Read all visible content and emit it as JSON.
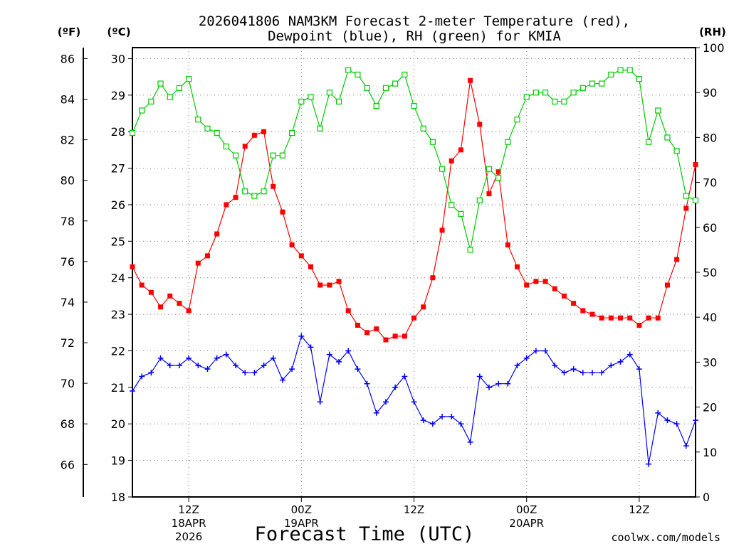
{
  "colors": {
    "temperature": "#ff0000",
    "dewpoint": "#0000ff",
    "rh": "#00cc00",
    "grid": "#777777",
    "credit": "#ff0000"
  },
  "chart_data": {
    "type": "line",
    "title_line1": "2026041806 NAM3KM Forecast 2-meter Temperature (red),",
    "title_line2": "Dewpoint (blue), RH (green) for KMIA",
    "xlabel": "Forecast Time (UTC)",
    "credit": "coolwx.com/models",
    "unit_labels": {
      "fahrenheit": "(ºF)",
      "celsius": "(ºC)",
      "rh": "(RH)"
    },
    "grid": true,
    "x_unit": "hour",
    "x_start": "2026-04-18 06Z",
    "x_step_hours": 1,
    "xlim": [
      0,
      60
    ],
    "x_ticks": [
      {
        "x": 6,
        "line1": "12Z",
        "line2": "18APR",
        "line3": "2026"
      },
      {
        "x": 18,
        "line1": "00Z",
        "line2": "19APR",
        "line3": ""
      },
      {
        "x": 30,
        "line1": "12Z",
        "line2": "",
        "line3": ""
      },
      {
        "x": 42,
        "line1": "00Z",
        "line2": "20APR",
        "line3": ""
      },
      {
        "x": 54,
        "line1": "12Z",
        "line2": "",
        "line3": ""
      }
    ],
    "y_left_celsius": {
      "lim": [
        18,
        30.3
      ],
      "ticks": [
        "18",
        "19",
        "20",
        "21",
        "22",
        "23",
        "24",
        "25",
        "26",
        "27",
        "28",
        "29",
        "30"
      ]
    },
    "y_left_fahrenheit": {
      "lim": [
        64.4,
        86.54
      ],
      "ticks": [
        "66",
        "68",
        "70",
        "72",
        "74",
        "76",
        "78",
        "80",
        "82",
        "84",
        "86"
      ]
    },
    "y_right_rh": {
      "lim": [
        0,
        100
      ],
      "ticks": [
        "0",
        "10",
        "20",
        "30",
        "40",
        "50",
        "60",
        "70",
        "80",
        "90",
        "100"
      ]
    },
    "series": [
      {
        "name": "Temperature",
        "axis": "celsius",
        "marker": "filled-square",
        "values": [
          24.3,
          23.8,
          23.6,
          23.2,
          23.5,
          23.3,
          23.1,
          24.4,
          24.6,
          25.2,
          26.0,
          26.2,
          27.6,
          27.9,
          28.0,
          26.5,
          25.8,
          24.9,
          24.6,
          24.3,
          23.8,
          23.8,
          23.9,
          23.1,
          22.7,
          22.5,
          22.6,
          22.3,
          22.4,
          22.4,
          22.9,
          23.2,
          24.0,
          25.3,
          27.2,
          27.5,
          29.4,
          28.2,
          26.3,
          26.9,
          24.9,
          24.3,
          23.8,
          23.9,
          23.9,
          23.7,
          23.5,
          23.3,
          23.1,
          23.0,
          22.9,
          22.9,
          22.9,
          22.9,
          22.7,
          22.9,
          22.9,
          23.8,
          24.5,
          25.9,
          27.1
        ]
      },
      {
        "name": "Dewpoint",
        "axis": "celsius",
        "marker": "plus",
        "values": [
          20.9,
          21.3,
          21.4,
          21.8,
          21.6,
          21.6,
          21.8,
          21.6,
          21.5,
          21.8,
          21.9,
          21.6,
          21.4,
          21.4,
          21.6,
          21.8,
          21.2,
          21.5,
          22.4,
          22.1,
          20.6,
          21.9,
          21.7,
          22.0,
          21.5,
          21.1,
          20.3,
          20.6,
          21.0,
          21.3,
          20.6,
          20.1,
          20.0,
          20.2,
          20.2,
          20.0,
          19.5,
          21.3,
          21.0,
          21.1,
          21.1,
          21.6,
          21.8,
          22.0,
          22.0,
          21.6,
          21.4,
          21.5,
          21.4,
          21.4,
          21.4,
          21.6,
          21.7,
          21.9,
          21.5,
          18.9,
          20.3,
          20.1,
          20.0,
          19.4,
          20.1
        ]
      },
      {
        "name": "RH",
        "axis": "rh",
        "marker": "open-square",
        "values": [
          81,
          86,
          88,
          92,
          89,
          91,
          93,
          84,
          82,
          81,
          78,
          76,
          68,
          67,
          68,
          76,
          76,
          81,
          88,
          89,
          82,
          90,
          88,
          95,
          94,
          91,
          87,
          91,
          92,
          94,
          87,
          82,
          79,
          73,
          65,
          63,
          55,
          66,
          73,
          71,
          79,
          84,
          89,
          90,
          90,
          88,
          88,
          90,
          91,
          92,
          92,
          94,
          95,
          95,
          93,
          79,
          86,
          80,
          77,
          67,
          66
        ]
      }
    ]
  }
}
